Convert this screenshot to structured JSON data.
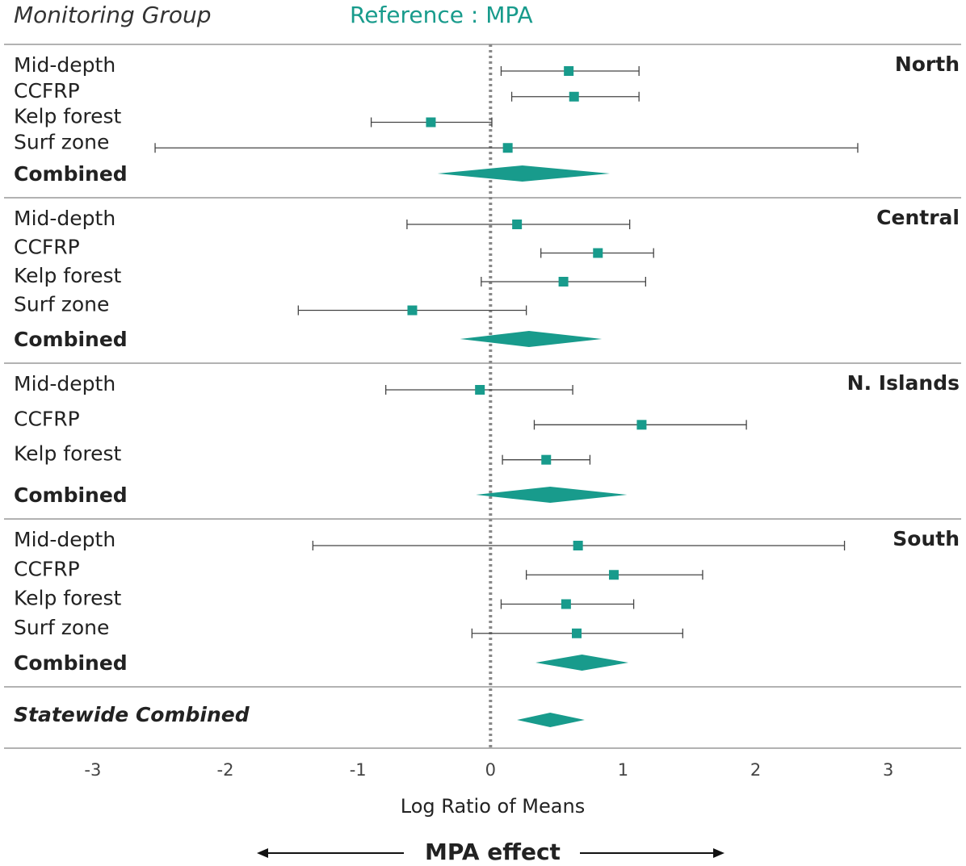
{
  "chart_data": {
    "type": "forest",
    "title": "Monitoring Group",
    "subtitle": "Reference : MPA",
    "x_label": "Log Ratio of Means",
    "direction_label": "MPA effect",
    "color": "#189b8c",
    "xlim": [
      -3.7,
      3.55
    ],
    "xticks": [
      -3,
      -2,
      -1,
      0,
      1,
      2,
      3
    ],
    "groups": [
      {
        "name": "North",
        "rows": [
          {
            "label": "Mid-depth",
            "estimate": 0.59,
            "lower": 0.08,
            "upper": 1.12
          },
          {
            "label": "CCFRP",
            "estimate": 0.63,
            "lower": 0.16,
            "upper": 1.12
          },
          {
            "label": "Kelp forest",
            "estimate": -0.45,
            "lower": -0.9,
            "upper": 0.01
          },
          {
            "label": "Surf zone",
            "estimate": 0.13,
            "lower": -2.53,
            "upper": 2.77
          }
        ],
        "combined": {
          "label": "Combined",
          "estimate": 0.24,
          "lower": -0.4,
          "upper": 0.9
        }
      },
      {
        "name": "Central",
        "rows": [
          {
            "label": "Mid-depth",
            "estimate": 0.2,
            "lower": -0.63,
            "upper": 1.05
          },
          {
            "label": "CCFRP",
            "estimate": 0.81,
            "lower": 0.38,
            "upper": 1.23
          },
          {
            "label": "Kelp forest",
            "estimate": 0.55,
            "lower": -0.07,
            "upper": 1.17
          },
          {
            "label": "Surf zone",
            "estimate": -0.59,
            "lower": -1.45,
            "upper": 0.27
          }
        ],
        "combined": {
          "label": "Combined",
          "estimate": 0.29,
          "lower": -0.23,
          "upper": 0.84
        }
      },
      {
        "name": "N. Islands",
        "rows": [
          {
            "label": "Mid-depth",
            "estimate": -0.08,
            "lower": -0.79,
            "upper": 0.62
          },
          {
            "label": "CCFRP",
            "estimate": 1.14,
            "lower": 0.33,
            "upper": 1.93
          },
          {
            "label": "Kelp forest",
            "estimate": 0.42,
            "lower": 0.09,
            "upper": 0.75
          }
        ],
        "combined": {
          "label": "Combined",
          "estimate": 0.45,
          "lower": -0.11,
          "upper": 1.03
        }
      },
      {
        "name": "South",
        "rows": [
          {
            "label": "Mid-depth",
            "estimate": 0.66,
            "lower": -1.34,
            "upper": 2.67
          },
          {
            "label": "CCFRP",
            "estimate": 0.93,
            "lower": 0.27,
            "upper": 1.6
          },
          {
            "label": "Kelp forest",
            "estimate": 0.57,
            "lower": 0.08,
            "upper": 1.08
          },
          {
            "label": "Surf zone",
            "estimate": 0.65,
            "lower": -0.14,
            "upper": 1.45
          }
        ],
        "combined": {
          "label": "Combined",
          "estimate": 0.69,
          "lower": 0.34,
          "upper": 1.04
        }
      }
    ],
    "overall": {
      "label": "Statewide Combined",
      "estimate": 0.45,
      "lower": 0.2,
      "upper": 0.71
    }
  }
}
